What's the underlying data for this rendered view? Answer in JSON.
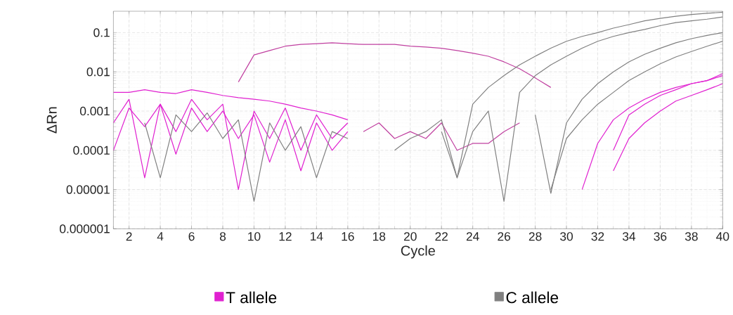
{
  "chart_data": {
    "type": "line",
    "xlabel": "Cycle",
    "ylabel": "ΔRn",
    "log": "y",
    "grid": true,
    "legend": "bottom",
    "marker": "none",
    "line_style": "solid",
    "xlim": [
      1,
      40
    ],
    "xticks": [
      2,
      4,
      6,
      8,
      10,
      12,
      14,
      16,
      18,
      20,
      22,
      24,
      26,
      28,
      30,
      32,
      34,
      36,
      38,
      40
    ],
    "ylim": [
      1e-06,
      0.35
    ],
    "yticks": [
      {
        "value": 1e-06,
        "label": "0.000001"
      },
      {
        "value": 1e-05,
        "label": "0.00001"
      },
      {
        "value": 0.0001,
        "label": "0.0001"
      },
      {
        "value": 0.001,
        "label": "0.001"
      },
      {
        "value": 0.01,
        "label": "0.01"
      },
      {
        "value": 0.1,
        "label": "0.1"
      }
    ],
    "series": [
      {
        "name": "T allele",
        "color": "#e020d0",
        "x": [
          1,
          2,
          3,
          4,
          5,
          6,
          7,
          8,
          9,
          10,
          11,
          12,
          13,
          14,
          15,
          16
        ],
        "values": [
          0.003,
          0.003,
          0.0035,
          0.003,
          0.0028,
          0.0035,
          0.003,
          0.0025,
          0.0022,
          0.002,
          0.0018,
          0.0015,
          0.0012,
          0.001,
          0.0008,
          0.0006
        ]
      },
      {
        "color": "#e020d0",
        "x": [
          1,
          2,
          3,
          4,
          5,
          6,
          7,
          8,
          9,
          10,
          11,
          12,
          13,
          14,
          15,
          16
        ],
        "values": [
          0.0001,
          0.0012,
          0.0004,
          0.0015,
          8e-05,
          0.0012,
          0.0003,
          0.001,
          0.0002,
          0.0008,
          5e-05,
          0.0006,
          3e-05,
          0.0005,
          0.0001,
          0.0003
        ]
      },
      {
        "color": "#e020d0",
        "x": [
          1,
          2,
          3,
          4,
          5,
          6,
          7,
          8,
          9,
          10,
          11,
          12,
          13,
          14,
          15,
          16
        ],
        "values": [
          0.0005,
          0.002,
          2e-05,
          0.0015,
          0.0003,
          0.002,
          0.0006,
          0.0015,
          1e-05,
          0.001,
          0.0002,
          0.0012,
          0.0001,
          0.0008,
          0.0002,
          0.0005
        ]
      },
      {
        "color": "#c040a0",
        "x": [
          9,
          10,
          11,
          12,
          13,
          14,
          15,
          16,
          17,
          18,
          19,
          20,
          21,
          22,
          23,
          24,
          25,
          26,
          27,
          28,
          29
        ],
        "values": [
          0.0055,
          0.027,
          0.035,
          0.045,
          0.05,
          0.052,
          0.055,
          0.052,
          0.05,
          0.05,
          0.05,
          0.045,
          0.043,
          0.04,
          0.035,
          0.03,
          0.025,
          0.018,
          0.012,
          0.007,
          0.004
        ]
      },
      {
        "color": "#c040a0",
        "x": [
          17,
          18,
          19,
          20,
          21,
          22,
          23,
          24,
          25,
          26,
          27
        ],
        "values": [
          0.0003,
          0.0005,
          0.0002,
          0.0003,
          0.0002,
          0.0005,
          0.0001,
          0.00015,
          0.00015,
          0.0003,
          0.0005
        ]
      },
      {
        "color": "#e020d0",
        "x": [
          31,
          32,
          33,
          34,
          35,
          36,
          37,
          38,
          39,
          40
        ],
        "values": [
          1e-05,
          0.00015,
          0.0006,
          0.0012,
          0.002,
          0.003,
          0.004,
          0.005,
          0.006,
          0.008
        ]
      },
      {
        "color": "#e020d0",
        "x": [
          33,
          34,
          35,
          36,
          37,
          38,
          39,
          40
        ],
        "values": [
          3e-05,
          0.0002,
          0.0005,
          0.001,
          0.0018,
          0.0025,
          0.0035,
          0.005
        ]
      },
      {
        "color": "#e020d0",
        "x": [
          33,
          34,
          35,
          36,
          37,
          38,
          39,
          40
        ],
        "values": [
          0.0001,
          0.0008,
          0.0015,
          0.0025,
          0.0035,
          0.005,
          0.006,
          0.009
        ]
      },
      {
        "name": "C allele",
        "color": "#808080",
        "x": [
          3,
          4,
          5,
          6,
          7,
          8,
          9,
          10,
          11,
          12,
          13,
          14,
          15,
          16
        ],
        "values": [
          0.0005,
          2e-05,
          0.0008,
          0.0003,
          0.0009,
          0.0002,
          0.0006,
          5e-06,
          0.0005,
          0.0001,
          0.0004,
          2e-05,
          0.0003,
          0.0002
        ]
      },
      {
        "color": "#808080",
        "x": [
          19,
          20,
          21,
          22,
          23,
          24,
          25,
          26,
          27,
          28,
          29,
          30,
          31,
          32,
          33,
          34,
          35,
          36,
          37,
          38,
          39,
          40
        ],
        "values": [
          0.0001,
          0.0002,
          0.0003,
          0.0006,
          2e-05,
          0.0015,
          0.004,
          0.008,
          0.015,
          0.025,
          0.04,
          0.06,
          0.08,
          0.1,
          0.13,
          0.16,
          0.2,
          0.23,
          0.26,
          0.29,
          0.31,
          0.33
        ]
      },
      {
        "color": "#808080",
        "x": [
          22,
          23,
          24,
          25,
          26,
          27,
          28,
          29,
          30,
          31,
          32,
          33,
          34,
          35,
          36,
          37,
          38,
          39,
          40
        ],
        "values": [
          0.0003,
          2e-05,
          0.0003,
          0.001,
          5e-06,
          0.003,
          0.008,
          0.015,
          0.025,
          0.04,
          0.06,
          0.08,
          0.1,
          0.12,
          0.15,
          0.18,
          0.2,
          0.22,
          0.25
        ]
      },
      {
        "color": "#808080",
        "x": [
          28,
          29,
          30,
          31,
          32,
          33,
          34,
          35,
          36,
          37,
          38,
          39,
          40
        ],
        "values": [
          0.0008,
          8e-06,
          0.0005,
          0.002,
          0.005,
          0.01,
          0.018,
          0.028,
          0.04,
          0.055,
          0.07,
          0.085,
          0.1
        ]
      },
      {
        "color": "#808080",
        "x": [
          29,
          30,
          31,
          32,
          33,
          34,
          35,
          36,
          37,
          38,
          39,
          40
        ],
        "values": [
          1e-05,
          0.0002,
          0.0006,
          0.0015,
          0.003,
          0.006,
          0.01,
          0.016,
          0.024,
          0.033,
          0.045,
          0.06
        ]
      }
    ]
  }
}
